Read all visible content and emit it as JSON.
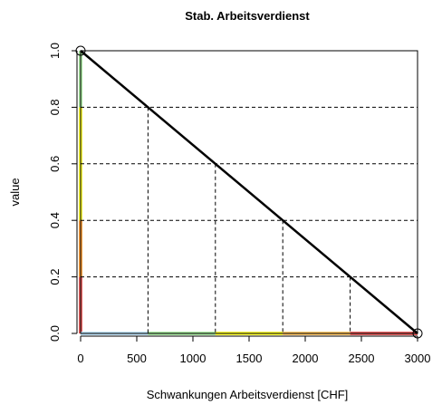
{
  "chart_data": {
    "type": "line",
    "title": "Stab. Arbeitsverdienst",
    "xlabel": "Schwankungen Arbeitsverdienst [CHF]",
    "ylabel": "value",
    "xlim": [
      0,
      3000
    ],
    "ylim": [
      0,
      1
    ],
    "x_ticks": [
      0,
      500,
      1000,
      1500,
      2000,
      2500,
      3000
    ],
    "x_tick_labels": [
      "0",
      "500",
      "1000",
      "1500",
      "2000",
      "2500",
      "3000"
    ],
    "y_ticks": [
      0,
      0.2,
      0.4,
      0.6,
      0.8,
      1.0
    ],
    "y_tick_labels": [
      "0.0",
      "0.2",
      "0.4",
      "0.6",
      "0.8",
      "1.0"
    ],
    "grid": "dashed guide lines at 0.2, 0.4, 0.6, 0.8",
    "series": [
      {
        "values": [
          {
            "x": 0,
            "y": 1.0
          },
          {
            "x": 3000,
            "y": 0.0
          }
        ]
      }
    ],
    "endpoint_markers": [
      {
        "x": 0,
        "y": 1.0
      },
      {
        "x": 3000,
        "y": 0.0
      }
    ],
    "guides": [
      {
        "x": 600,
        "y": 0.8
      },
      {
        "x": 1200,
        "y": 0.6
      },
      {
        "x": 1800,
        "y": 0.4
      },
      {
        "x": 2400,
        "y": 0.2
      }
    ],
    "y_color_bands": [
      {
        "from": 0.0,
        "to": 0.2,
        "color": "#e8605f"
      },
      {
        "from": 0.2,
        "to": 0.4,
        "color": "#ffa13e"
      },
      {
        "from": 0.4,
        "to": 0.6,
        "color": "#ffff34"
      },
      {
        "from": 0.6,
        "to": 0.8,
        "color": "#ffff34"
      },
      {
        "from": 0.8,
        "to": 1.0,
        "color": "#a8e8a0"
      }
    ],
    "x_color_bands": [
      {
        "from": 0,
        "to": 600,
        "color": "#bcdff5"
      },
      {
        "from": 600,
        "to": 1200,
        "color": "#a8e8a0"
      },
      {
        "from": 1200,
        "to": 1800,
        "color": "#ffff34"
      },
      {
        "from": 1800,
        "to": 2400,
        "color": "#ffc766"
      },
      {
        "from": 2400,
        "to": 3000,
        "color": "#e8605f"
      }
    ],
    "line_color": "#000000"
  }
}
